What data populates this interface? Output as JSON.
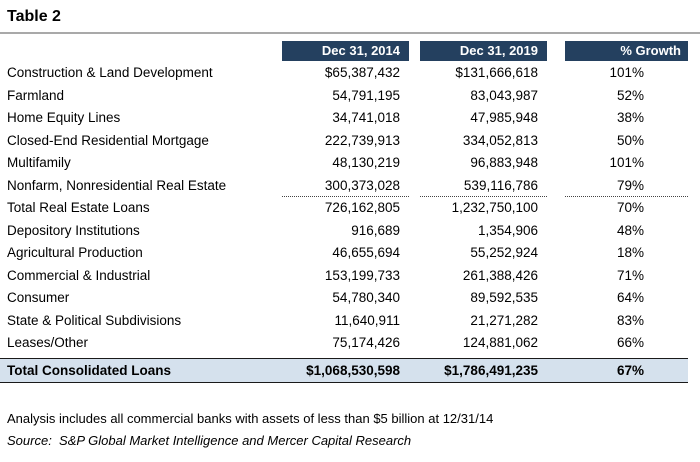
{
  "title": "Table 2",
  "chart_data": {
    "type": "table",
    "columns": [
      "Dec 31, 2014",
      "Dec 31, 2019",
      "% Growth"
    ],
    "rows": [
      {
        "label": "Construction & Land Development",
        "v2014": "$65,387,432",
        "v2019": "$131,666,618",
        "growth": "101%"
      },
      {
        "label": "Farmland",
        "v2014": "54,791,195",
        "v2019": "83,043,987",
        "growth": "52%"
      },
      {
        "label": "Home Equity Lines",
        "v2014": "34,741,018",
        "v2019": "47,985,948",
        "growth": "38%"
      },
      {
        "label": "Closed-End Residential Mortgage",
        "v2014": "222,739,913",
        "v2019": "334,052,813",
        "growth": "50%"
      },
      {
        "label": "Multifamily",
        "v2014": "48,130,219",
        "v2019": "96,883,948",
        "growth": "101%"
      },
      {
        "label": "Nonfarm, Nonresidential Real Estate",
        "v2014": "300,373,028",
        "v2019": "539,116,786",
        "growth": "79%",
        "underline_after": true
      },
      {
        "label": "Total Real Estate Loans",
        "v2014": "726,162,805",
        "v2019": "1,232,750,100",
        "growth": "70%"
      },
      {
        "label": "Depository Institutions",
        "v2014": "916,689",
        "v2019": "1,354,906",
        "growth": "48%"
      },
      {
        "label": "Agricultural Production",
        "v2014": "46,655,694",
        "v2019": "55,252,924",
        "growth": "18%"
      },
      {
        "label": "Commercial & Industrial",
        "v2014": "153,199,733",
        "v2019": "261,388,426",
        "growth": "71%"
      },
      {
        "label": "Consumer",
        "v2014": "54,780,340",
        "v2019": "89,592,535",
        "growth": "64%"
      },
      {
        "label": "State & Political Subdivisions",
        "v2014": "11,640,911",
        "v2019": "21,271,282",
        "growth": "83%"
      },
      {
        "label": "Leases/Other",
        "v2014": "75,174,426",
        "v2019": "124,881,062",
        "growth": "66%"
      }
    ],
    "total_row": {
      "label": "Total Consolidated Loans",
      "v2014": "$1,068,530,598",
      "v2019": "$1,786,491,235",
      "growth": "67%"
    }
  },
  "footnotes": {
    "analysis": "Analysis includes all commercial banks with assets of less than $5 billion at 12/31/14",
    "source": "Source:  S&P Global Market Intelligence and Mercer Capital Research"
  },
  "colors": {
    "header_bg": "#24405F",
    "header_text": "#FFFFFF",
    "total_bg": "#D5E1ED",
    "rule": "#A9A9A9"
  }
}
